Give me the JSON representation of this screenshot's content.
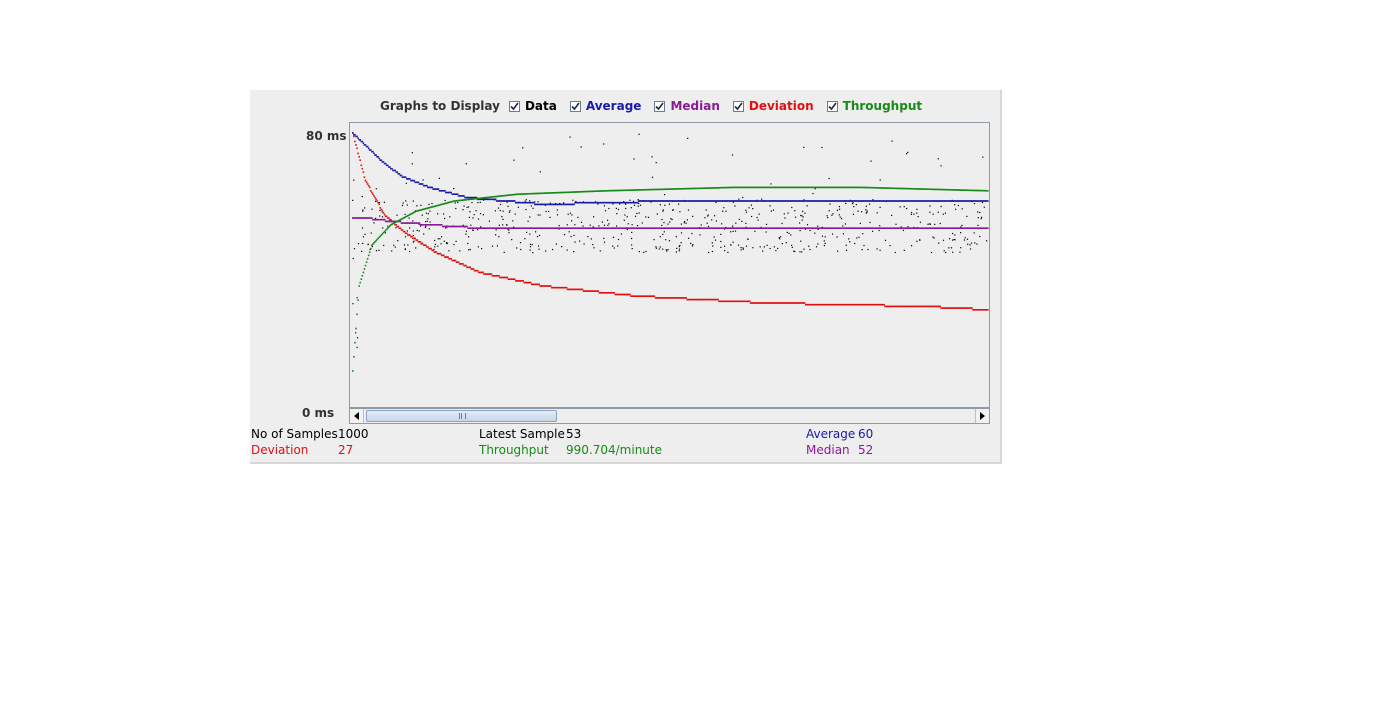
{
  "legend": {
    "title": "Graphs to Display",
    "items": [
      {
        "label": "Data",
        "checked": true,
        "color": "#000000"
      },
      {
        "label": "Average",
        "checked": true,
        "color": "#1a1aaa"
      },
      {
        "label": "Median",
        "checked": true,
        "color": "#8b1a9a"
      },
      {
        "label": "Deviation",
        "checked": true,
        "color": "#e01010"
      },
      {
        "label": "Throughput",
        "checked": true,
        "color": "#178a17"
      }
    ]
  },
  "axis": {
    "max_label": "80  ms",
    "min_label": "0  ms"
  },
  "stats": {
    "samples_label": "No of Samples",
    "samples_value": "1000",
    "latest_label": "Latest Sample",
    "latest_value": "53",
    "average_label": "Average",
    "average_value": "60",
    "deviation_label": "Deviation",
    "deviation_value": "27",
    "throughput_label": "Throughput",
    "throughput_value": "990.704/minute",
    "median_label": "Median",
    "median_value": "52"
  },
  "chart_data": {
    "type": "scatter",
    "y_unit": "ms",
    "ylim": [
      0,
      80
    ],
    "x_label": "sample",
    "xlim": [
      0,
      1000
    ],
    "series": [
      {
        "name": "Average",
        "color": "#1a1aaa",
        "x": [
          0,
          50,
          80,
          120,
          180,
          300,
          500,
          700,
          1000
        ],
        "values": [
          80,
          71,
          67,
          64,
          61,
          59,
          60,
          60,
          60
        ]
      },
      {
        "name": "Median",
        "color": "#8b1a9a",
        "x": [
          0,
          20,
          60,
          120,
          200,
          1000
        ],
        "values": [
          55,
          55,
          54,
          53,
          52,
          52
        ]
      },
      {
        "name": "Deviation",
        "color": "#e01010",
        "x": [
          0,
          20,
          50,
          80,
          130,
          200,
          300,
          450,
          650,
          900,
          1000
        ],
        "values": [
          80,
          66,
          56,
          51,
          45,
          39,
          35,
          32,
          30,
          29,
          28
        ]
      },
      {
        "name": "Throughput",
        "color": "#178a17",
        "x": [
          0,
          10,
          30,
          60,
          100,
          160,
          260,
          400,
          600,
          800,
          1000
        ],
        "values": [
          10,
          35,
          47,
          53,
          57,
          60,
          62,
          63,
          64,
          64,
          63
        ]
      }
    ],
    "data_points": {
      "name": "Data",
      "color": "#000000",
      "typical_range": [
        45,
        80
      ]
    }
  }
}
